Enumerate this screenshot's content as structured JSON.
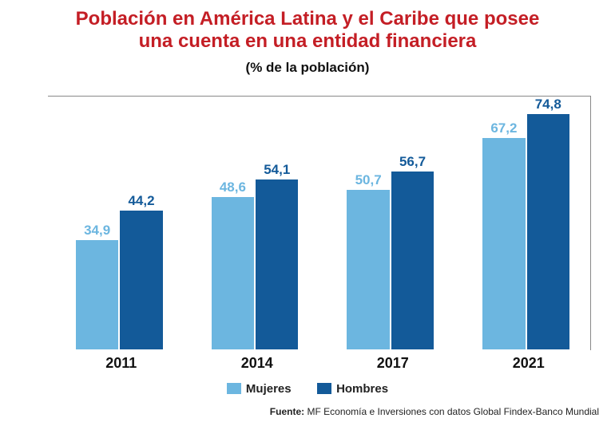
{
  "title_line1": "Población en América Latina y el Caribe que posee",
  "title_line2": "una cuenta en una entidad financiera",
  "title_color": "#c41e25",
  "title_fontsize": 24,
  "subtitle": "(% de la población)",
  "subtitle_color": "#111111",
  "subtitle_fontsize": 17,
  "chart": {
    "type": "bar",
    "ymax": 80,
    "background_color": "#ffffff",
    "frame_color": "#888888",
    "group_width_pct": 17,
    "bar_width_pct": 48,
    "bar_gap_pct": 0,
    "label_fontsize": 17,
    "xlabel_fontsize": 18,
    "xlabel_color": "#111111",
    "categories": [
      "2011",
      "2014",
      "2017",
      "2021"
    ],
    "group_left_pct": [
      5,
      30,
      55,
      80
    ],
    "series": [
      {
        "name": "Mujeres",
        "color": "#6cb6e0",
        "label_color": "#6cb6e0",
        "values": [
          34.9,
          48.6,
          50.7,
          67.2
        ],
        "labels": [
          "34,9",
          "48,6",
          "50,7",
          "67,2"
        ]
      },
      {
        "name": "Hombres",
        "color": "#135a99",
        "label_color": "#135a99",
        "values": [
          44.2,
          54.1,
          56.7,
          74.8
        ],
        "labels": [
          "44,2",
          "54,1",
          "56,7",
          "74,8"
        ]
      }
    ]
  },
  "legend": {
    "fontsize": 15,
    "swatch_colors": [
      "#6cb6e0",
      "#135a99"
    ],
    "labels": [
      "Mujeres",
      "Hombres"
    ],
    "text_color": "#222222"
  },
  "source": {
    "prefix": "Fuente:",
    "text": " MF Economía e Inversiones con datos Global Findex-Banco Mundial",
    "fontsize": 12,
    "color": "#222222"
  }
}
